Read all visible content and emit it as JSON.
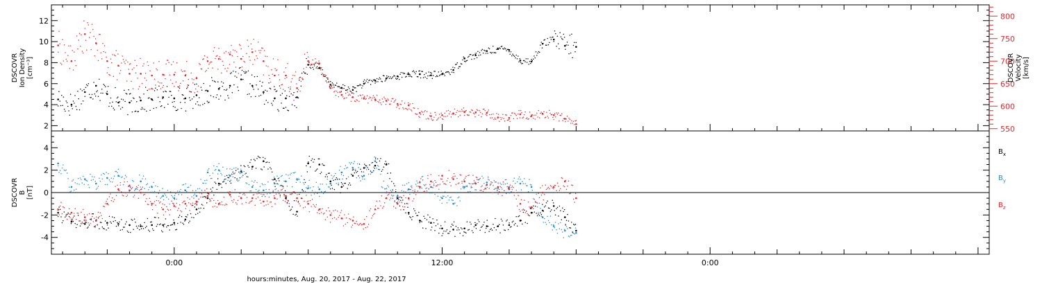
{
  "xaxis": {
    "tick_labels": [
      "0:00",
      "12:00",
      "0:00"
    ],
    "caption": "hours:minutes, Aug. 20, 2017 - Aug. 22, 2017"
  },
  "chart_data": [
    {
      "type": "scatter",
      "panel": "top",
      "ylabel_left": [
        "DSCOVR",
        "Ion Density",
        "[cm⁻³]"
      ],
      "ylabel_right": [
        "DSCOVR",
        "Velocity",
        "[km/s]"
      ],
      "x_range_hours": [
        -5.5,
        36.5
      ],
      "y_range_left": [
        1.5,
        13.5
      ],
      "y_ticks_left": [
        2,
        4,
        6,
        8,
        10,
        12
      ],
      "y_range_right": [
        545,
        825
      ],
      "y_ticks_right": [
        550,
        600,
        650,
        700,
        750,
        800
      ],
      "colors": {
        "density": "#000000",
        "velocity": "#e8262a"
      },
      "series": [
        {
          "name": "",
          "axis": "left",
          "color": "#000000",
          "x": [
            -5.2,
            -4.6,
            -4.0,
            -3.5,
            -3.0,
            -2.5,
            -2.0,
            -1.5,
            -1.0,
            -0.5,
            0.0,
            0.5,
            1.0,
            1.5,
            2.0,
            2.5,
            3.0,
            3.5,
            4.0,
            4.5,
            5.0,
            5.5,
            6.0,
            6.5,
            7.0,
            7.5,
            8.0,
            8.5,
            9.0,
            9.5,
            10.0,
            10.5,
            11.0,
            11.5,
            12.0,
            12.5,
            13.0,
            13.5,
            14.0,
            14.5,
            15.0,
            15.5,
            16.0,
            16.5,
            17.0,
            17.5,
            18.0
          ],
          "y": [
            4.5,
            4.0,
            5.2,
            5.8,
            5.0,
            4.2,
            4.2,
            4.4,
            4.5,
            4.7,
            4.6,
            4.6,
            4.9,
            5.3,
            5.5,
            5.8,
            6.4,
            5.8,
            5.2,
            4.6,
            4.6,
            4.7,
            7.8,
            7.5,
            5.9,
            5.6,
            5.4,
            6.0,
            6.3,
            6.5,
            6.7,
            6.9,
            6.9,
            6.8,
            6.9,
            7.3,
            8.4,
            8.7,
            9.1,
            9.3,
            9.2,
            8.2,
            8.1,
            9.8,
            10.2,
            9.6,
            9.5
          ]
        },
        {
          "name": "",
          "axis": "right",
          "color": "#e8262a",
          "x": [
            -5.2,
            -4.6,
            -4.0,
            -3.5,
            -3.0,
            -2.5,
            -2.0,
            -1.5,
            -1.0,
            -0.5,
            0.0,
            0.5,
            1.0,
            1.5,
            2.0,
            2.5,
            3.0,
            3.5,
            4.0,
            4.5,
            5.0,
            5.5,
            6.0,
            6.5,
            7.0,
            7.5,
            8.0,
            8.5,
            9.0,
            9.5,
            10.0,
            10.5,
            11.0,
            11.5,
            12.0,
            12.5,
            13.0,
            13.5,
            14.0,
            14.5,
            15.0,
            15.5,
            16.0,
            16.5,
            17.0,
            17.5,
            18.0
          ],
          "y": [
            735,
            700,
            760,
            740,
            700,
            690,
            672,
            672,
            668,
            670,
            670,
            668,
            662,
            700,
            705,
            715,
            705,
            720,
            700,
            668,
            668,
            640,
            700,
            695,
            640,
            625,
            620,
            618,
            615,
            612,
            605,
            602,
            585,
            578,
            580,
            584,
            587,
            586,
            585,
            575,
            574,
            582,
            578,
            583,
            580,
            572,
            560
          ]
        }
      ]
    },
    {
      "type": "scatter",
      "panel": "bottom",
      "ylabel_left": [
        "DSCOVR",
        "B",
        "[nT]"
      ],
      "x_range_hours": [
        -5.5,
        36.5
      ],
      "y_range": [
        -5.5,
        5.5
      ],
      "y_ticks": [
        -4,
        -2,
        0,
        2,
        4
      ],
      "zero_line": true,
      "legend": [
        "B",
        "B",
        "B"
      ],
      "legend_subscripts": [
        "x",
        "y",
        "z"
      ],
      "colors": {
        "Bx": "#000000",
        "By": "#1f8ad8",
        "Bz": "#e8262a"
      },
      "series": [
        {
          "name": "Bx",
          "color": "#000000",
          "x": [
            -5.2,
            -4.6,
            -4.0,
            -3.5,
            -3.0,
            -2.5,
            -2.0,
            -1.5,
            -1.0,
            -0.5,
            0.0,
            0.5,
            1.0,
            1.5,
            2.0,
            2.5,
            3.0,
            3.5,
            4.0,
            4.5,
            5.0,
            5.5,
            6.0,
            6.5,
            7.0,
            7.5,
            8.0,
            8.5,
            9.0,
            9.5,
            10.0,
            10.5,
            11.0,
            11.5,
            12.0,
            12.5,
            13.0,
            13.5,
            14.0,
            14.5,
            15.0,
            15.5,
            16.0,
            16.5,
            17.0,
            17.5,
            18.0
          ],
          "y": [
            -1.8,
            -2.6,
            -2.8,
            -2.5,
            -2.7,
            -2.8,
            -2.9,
            -3.0,
            -2.9,
            -2.9,
            -2.7,
            -2.4,
            -1.5,
            -0.5,
            0.8,
            1.5,
            1.9,
            2.3,
            2.8,
            1.2,
            -0.5,
            -1.7,
            2.6,
            2.5,
            1.0,
            0.5,
            1.5,
            2.2,
            2.4,
            2.5,
            -0.5,
            -1.8,
            -2.5,
            -2.7,
            -3.2,
            -3.3,
            -3.2,
            -2.9,
            -3.0,
            -3.0,
            -2.9,
            -2.5,
            -1.8,
            -1.6,
            -1.2,
            -2.2,
            -3.4
          ]
        },
        {
          "name": "By",
          "color": "#1f8ad8",
          "x": [
            -5.2,
            -4.6,
            -4.0,
            -3.5,
            -3.0,
            -2.5,
            -2.0,
            -1.5,
            -1.0,
            -0.5,
            0.0,
            0.5,
            1.0,
            1.5,
            2.0,
            2.5,
            3.0,
            3.5,
            4.0,
            4.5,
            5.0,
            5.5,
            6.0,
            6.5,
            7.0,
            7.5,
            8.0,
            8.5,
            9.0,
            9.5,
            10.0,
            10.5,
            11.0,
            11.5,
            12.0,
            12.5,
            13.0,
            13.5,
            14.0,
            14.5,
            15.0,
            15.5,
            16.0,
            16.5,
            17.0,
            17.5,
            18.0
          ],
          "y": [
            2.6,
            0.5,
            1.2,
            0.8,
            1.3,
            1.5,
            0.6,
            1.0,
            0.5,
            -0.3,
            -0.5,
            0.2,
            -0.3,
            1.8,
            2.0,
            1.5,
            1.8,
            0.5,
            0.2,
            0.8,
            1.0,
            1.2,
            0.4,
            0.3,
            0.8,
            1.8,
            2.2,
            1.5,
            2.8,
            0.0,
            -0.3,
            0.3,
            0.9,
            0.5,
            -0.5,
            -1.0,
            0.5,
            0.8,
            0.9,
            0.4,
            0.5,
            0.8,
            0.5,
            -2.2,
            -3.0,
            -3.4,
            -3.6
          ]
        },
        {
          "name": "Bz",
          "color": "#e8262a",
          "x": [
            -5.2,
            -4.6,
            -4.0,
            -3.5,
            -3.0,
            -2.5,
            -2.0,
            -1.5,
            -1.0,
            -0.5,
            0.0,
            0.5,
            1.0,
            1.5,
            2.0,
            2.5,
            3.0,
            3.5,
            4.0,
            4.5,
            5.0,
            5.5,
            6.0,
            6.5,
            7.0,
            7.5,
            8.0,
            8.5,
            9.0,
            9.5,
            10.0,
            10.5,
            11.0,
            11.5,
            12.0,
            12.5,
            13.0,
            13.5,
            14.0,
            14.5,
            15.0,
            15.5,
            16.0,
            16.5,
            17.0,
            17.5,
            18.0
          ],
          "y": [
            -1.5,
            -1.8,
            -2.2,
            -2.5,
            -1.0,
            0.3,
            0.2,
            0.0,
            -1.0,
            -1.5,
            -1.2,
            -1.0,
            -0.8,
            -0.3,
            -1.0,
            -0.2,
            -0.5,
            -0.5,
            -0.8,
            -0.5,
            -0.3,
            -0.5,
            -1.0,
            -1.5,
            -2.0,
            -2.3,
            -2.5,
            -2.8,
            -1.5,
            -0.5,
            -1.0,
            -0.5,
            0.5,
            1.0,
            1.5,
            1.2,
            1.0,
            0.8,
            0.7,
            0.5,
            0.3,
            -1.0,
            -1.3,
            0.0,
            0.5,
            1.0,
            -0.5
          ]
        }
      ]
    }
  ]
}
